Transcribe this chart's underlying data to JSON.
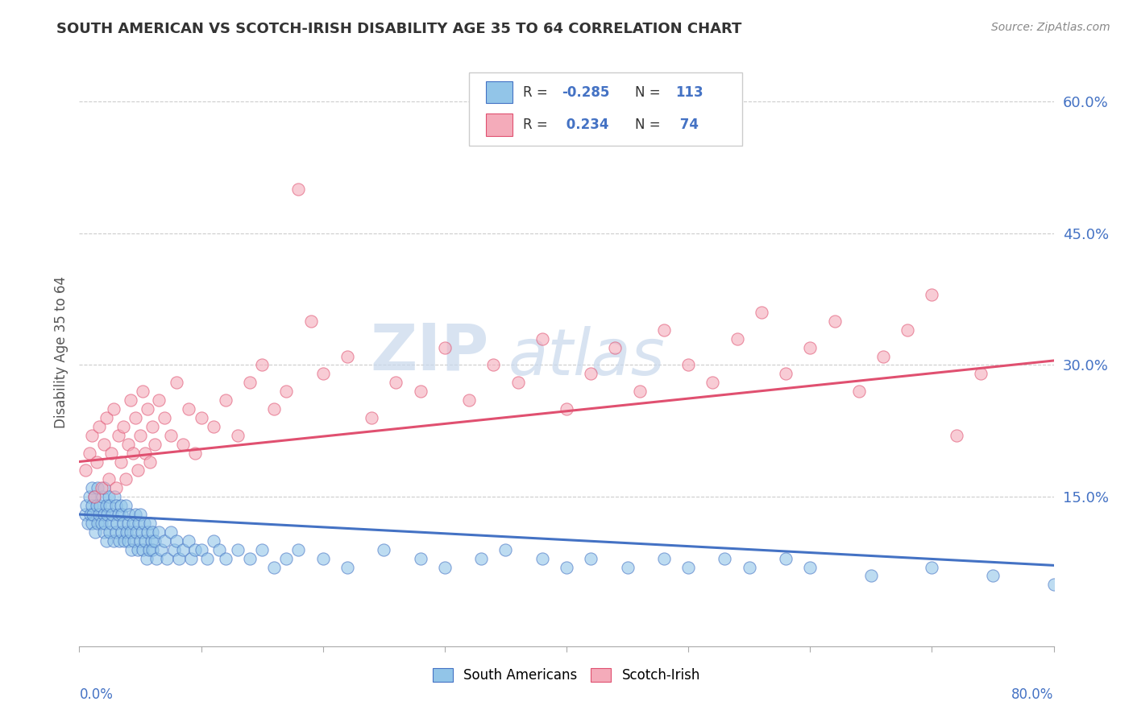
{
  "title": "SOUTH AMERICAN VS SCOTCH-IRISH DISABILITY AGE 35 TO 64 CORRELATION CHART",
  "source": "Source: ZipAtlas.com",
  "ylabel": "Disability Age 35 to 64",
  "right_yticks": [
    0.0,
    0.15,
    0.3,
    0.45,
    0.6
  ],
  "right_yticklabels": [
    "",
    "15.0%",
    "30.0%",
    "45.0%",
    "60.0%"
  ],
  "xmin": 0.0,
  "xmax": 0.8,
  "ymin": -0.02,
  "ymax": 0.65,
  "blue_color": "#92C5E8",
  "pink_color": "#F4ABBA",
  "blue_line_color": "#4472C4",
  "pink_line_color": "#E05070",
  "watermark_zip": "ZIP",
  "watermark_atlas": "atlas",
  "grid_color": "#CCCCCC",
  "bg_color": "#FFFFFF",
  "blue_trend_x": [
    0.0,
    0.8
  ],
  "blue_trend_y": [
    0.13,
    0.072
  ],
  "pink_trend_x": [
    0.0,
    0.8
  ],
  "pink_trend_y": [
    0.19,
    0.305
  ],
  "xtick_positions": [
    0.0,
    0.1,
    0.2,
    0.3,
    0.4,
    0.5,
    0.6,
    0.7,
    0.8
  ],
  "blue_x": [
    0.005,
    0.006,
    0.007,
    0.008,
    0.009,
    0.01,
    0.01,
    0.01,
    0.011,
    0.012,
    0.013,
    0.014,
    0.015,
    0.015,
    0.016,
    0.017,
    0.018,
    0.019,
    0.02,
    0.02,
    0.02,
    0.021,
    0.022,
    0.022,
    0.023,
    0.024,
    0.025,
    0.025,
    0.026,
    0.027,
    0.028,
    0.029,
    0.03,
    0.03,
    0.031,
    0.032,
    0.033,
    0.034,
    0.035,
    0.035,
    0.036,
    0.037,
    0.038,
    0.039,
    0.04,
    0.04,
    0.041,
    0.042,
    0.043,
    0.044,
    0.045,
    0.046,
    0.047,
    0.048,
    0.049,
    0.05,
    0.05,
    0.051,
    0.052,
    0.053,
    0.054,
    0.055,
    0.056,
    0.057,
    0.058,
    0.059,
    0.06,
    0.06,
    0.062,
    0.063,
    0.065,
    0.067,
    0.07,
    0.072,
    0.075,
    0.078,
    0.08,
    0.082,
    0.085,
    0.09,
    0.092,
    0.095,
    0.1,
    0.105,
    0.11,
    0.115,
    0.12,
    0.13,
    0.14,
    0.15,
    0.16,
    0.17,
    0.18,
    0.2,
    0.22,
    0.25,
    0.28,
    0.3,
    0.33,
    0.35,
    0.38,
    0.4,
    0.42,
    0.45,
    0.48,
    0.5,
    0.53,
    0.55,
    0.58,
    0.6,
    0.65,
    0.7,
    0.75,
    0.8
  ],
  "blue_y": [
    0.13,
    0.14,
    0.12,
    0.15,
    0.13,
    0.14,
    0.12,
    0.16,
    0.13,
    0.15,
    0.11,
    0.14,
    0.12,
    0.16,
    0.13,
    0.14,
    0.12,
    0.15,
    0.11,
    0.13,
    0.16,
    0.12,
    0.14,
    0.1,
    0.13,
    0.15,
    0.11,
    0.14,
    0.12,
    0.13,
    0.1,
    0.15,
    0.11,
    0.14,
    0.12,
    0.13,
    0.1,
    0.14,
    0.11,
    0.13,
    0.12,
    0.1,
    0.14,
    0.11,
    0.12,
    0.1,
    0.13,
    0.11,
    0.09,
    0.12,
    0.1,
    0.13,
    0.11,
    0.09,
    0.12,
    0.1,
    0.13,
    0.11,
    0.09,
    0.12,
    0.1,
    0.08,
    0.11,
    0.09,
    0.12,
    0.1,
    0.09,
    0.11,
    0.1,
    0.08,
    0.11,
    0.09,
    0.1,
    0.08,
    0.11,
    0.09,
    0.1,
    0.08,
    0.09,
    0.1,
    0.08,
    0.09,
    0.09,
    0.08,
    0.1,
    0.09,
    0.08,
    0.09,
    0.08,
    0.09,
    0.07,
    0.08,
    0.09,
    0.08,
    0.07,
    0.09,
    0.08,
    0.07,
    0.08,
    0.09,
    0.08,
    0.07,
    0.08,
    0.07,
    0.08,
    0.07,
    0.08,
    0.07,
    0.08,
    0.07,
    0.06,
    0.07,
    0.06,
    0.05
  ],
  "pink_x": [
    0.005,
    0.008,
    0.01,
    0.012,
    0.014,
    0.016,
    0.018,
    0.02,
    0.022,
    0.024,
    0.026,
    0.028,
    0.03,
    0.032,
    0.034,
    0.036,
    0.038,
    0.04,
    0.042,
    0.044,
    0.046,
    0.048,
    0.05,
    0.052,
    0.054,
    0.056,
    0.058,
    0.06,
    0.062,
    0.065,
    0.07,
    0.075,
    0.08,
    0.085,
    0.09,
    0.095,
    0.1,
    0.11,
    0.12,
    0.13,
    0.14,
    0.15,
    0.16,
    0.17,
    0.18,
    0.19,
    0.2,
    0.22,
    0.24,
    0.26,
    0.28,
    0.3,
    0.32,
    0.34,
    0.36,
    0.38,
    0.4,
    0.42,
    0.44,
    0.46,
    0.48,
    0.5,
    0.52,
    0.54,
    0.56,
    0.58,
    0.6,
    0.62,
    0.64,
    0.66,
    0.68,
    0.7,
    0.72,
    0.74
  ],
  "pink_y": [
    0.18,
    0.2,
    0.22,
    0.15,
    0.19,
    0.23,
    0.16,
    0.21,
    0.24,
    0.17,
    0.2,
    0.25,
    0.16,
    0.22,
    0.19,
    0.23,
    0.17,
    0.21,
    0.26,
    0.2,
    0.24,
    0.18,
    0.22,
    0.27,
    0.2,
    0.25,
    0.19,
    0.23,
    0.21,
    0.26,
    0.24,
    0.22,
    0.28,
    0.21,
    0.25,
    0.2,
    0.24,
    0.23,
    0.26,
    0.22,
    0.28,
    0.3,
    0.25,
    0.27,
    0.5,
    0.35,
    0.29,
    0.31,
    0.24,
    0.28,
    0.27,
    0.32,
    0.26,
    0.3,
    0.28,
    0.33,
    0.25,
    0.29,
    0.32,
    0.27,
    0.34,
    0.3,
    0.28,
    0.33,
    0.36,
    0.29,
    0.32,
    0.35,
    0.27,
    0.31,
    0.34,
    0.38,
    0.22,
    0.29
  ]
}
